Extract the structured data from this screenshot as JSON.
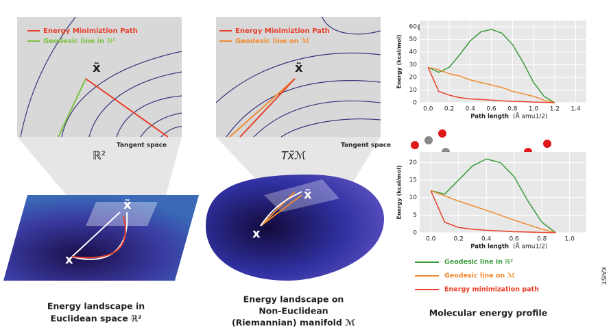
{
  "panels": [
    {
      "legend": [
        "Energy Minimiztion Path",
        "Geodesic line in ℝ²"
      ],
      "point_top": "x̃",
      "tangent": "Tangent space",
      "space": "ℝ²",
      "point_bottom": "x",
      "caption": [
        "Energy landscape in",
        "Euclidean space ℝ²"
      ]
    },
    {
      "legend": [
        "Energy Minimiztion Path",
        "Geodesic line on ℳ"
      ],
      "point_top": "x̃",
      "tangent": "Tangent space",
      "space": "Tx̃ℳ",
      "point_bottom": "x",
      "caption": [
        "Energy landscape on",
        "Non-Euclidean",
        "(Riemannian) manifold ℳ"
      ]
    }
  ],
  "right_caption": "Molecular energy profile",
  "credit": "KAIST.",
  "chart_data": [
    {
      "type": "line",
      "y_label": "Energy (kcal/mol)",
      "x_label": "Path length",
      "x_unit": "(Å amu1/2)",
      "x": [
        0,
        0.1,
        0.2,
        0.3,
        0.4,
        0.5,
        0.6,
        0.7,
        0.8,
        0.9,
        1.0,
        1.1,
        1.2
      ],
      "series": [
        {
          "name": "Geodesic line in ℝ²",
          "color": "#3a9a3a",
          "values": [
            28,
            24,
            28,
            38,
            49,
            56,
            58,
            55,
            46,
            32,
            16,
            5,
            0
          ]
        },
        {
          "name": "Geodesic line on ℳ",
          "color": "#f08a30",
          "values": [
            28,
            26,
            23,
            21,
            18,
            16,
            14,
            12,
            9,
            7,
            5,
            2,
            0
          ]
        },
        {
          "name": "Energy minimization path",
          "color": "#e8402a",
          "values": [
            28,
            9,
            6,
            4,
            3,
            2.5,
            2,
            1.5,
            1,
            0.8,
            0.5,
            0.3,
            0
          ]
        }
      ],
      "xlim": [
        -0.08,
        1.5
      ],
      "ylim": [
        0,
        65
      ],
      "xticks": [
        {
          "value": 0,
          "label": "0.0"
        },
        0.2,
        0.4,
        0.6,
        0.8,
        {
          "value": 1,
          "label": "1.0"
        },
        1.2,
        1.4
      ],
      "yticks": [
        0,
        10,
        20,
        30,
        40,
        50,
        60
      ],
      "grid": true
    },
    {
      "type": "line",
      "y_label": "Energy (kcal/mol)",
      "x_label": "Path length",
      "x_unit": "(Å amu1/2)",
      "x": [
        0,
        0.1,
        0.2,
        0.3,
        0.4,
        0.5,
        0.6,
        0.7,
        0.8,
        0.9
      ],
      "series": [
        {
          "color": "#3a9a3a",
          "values": [
            12,
            11,
            15,
            19,
            21,
            20,
            16,
            9,
            3,
            0
          ]
        },
        {
          "color": "#f08a30",
          "values": [
            12,
            10.5,
            9,
            7.7,
            6.4,
            5,
            3.6,
            2.3,
            1,
            0
          ]
        },
        {
          "color": "#e8402a",
          "values": [
            12,
            3,
            1.5,
            1,
            0.7,
            0.5,
            0.3,
            0.2,
            0.1,
            0
          ]
        }
      ],
      "xlim": [
        -0.08,
        1.12
      ],
      "ylim": [
        0,
        23
      ],
      "xticks": [
        {
          "value": 0,
          "label": "0.0"
        },
        0.2,
        0.4,
        0.6,
        0.8,
        {
          "value": 1,
          "label": "1.0"
        }
      ],
      "yticks": [
        0,
        5,
        10,
        15,
        20
      ],
      "grid": true
    }
  ]
}
